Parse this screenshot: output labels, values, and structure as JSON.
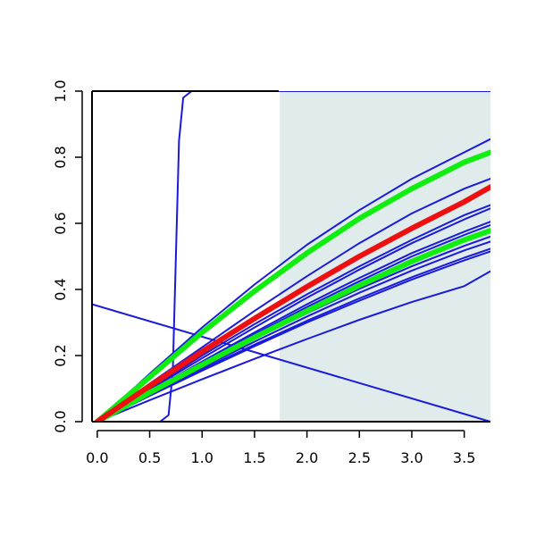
{
  "chart_data": {
    "type": "line",
    "title": "",
    "xlabel": "",
    "ylabel": "",
    "xlim": [
      -0.05,
      3.75
    ],
    "ylim": [
      0,
      1
    ],
    "grid": false,
    "x_ticks": [
      "0.0",
      "0.5",
      "1.0",
      "1.5",
      "2.0",
      "2.5",
      "3.0",
      "3.5"
    ],
    "y_ticks": [
      "0.0",
      "0.2",
      "0.4",
      "0.6",
      "0.8",
      "1.0"
    ],
    "shaded_region": {
      "x_start": 1.74,
      "x_end": 3.75,
      "color": "#e0ecec"
    },
    "series": [
      {
        "color": "#1a1adb",
        "width": 2,
        "points": [
          [
            -0.05,
            0.355
          ],
          [
            3.75,
            0.0
          ]
        ]
      },
      {
        "color": "#1a1adb",
        "width": 2,
        "points": [
          [
            0.0,
            0.0
          ],
          [
            0.6,
            0.0
          ],
          [
            0.68,
            0.02
          ],
          [
            0.72,
            0.15
          ],
          [
            0.75,
            0.5
          ],
          [
            0.78,
            0.85
          ],
          [
            0.82,
            0.98
          ],
          [
            0.9,
            1.0
          ],
          [
            3.75,
            1.0
          ]
        ]
      },
      {
        "color": "#1a1adb",
        "width": 2,
        "points": [
          [
            0.0,
            0.0
          ],
          [
            0.5,
            0.145
          ],
          [
            1.0,
            0.285
          ],
          [
            1.5,
            0.415
          ],
          [
            2.0,
            0.535
          ],
          [
            2.5,
            0.64
          ],
          [
            3.0,
            0.735
          ],
          [
            3.5,
            0.815
          ],
          [
            3.75,
            0.855
          ]
        ]
      },
      {
        "color": "#1a1adb",
        "width": 2,
        "points": [
          [
            0.0,
            0.0
          ],
          [
            0.5,
            0.115
          ],
          [
            1.0,
            0.225
          ],
          [
            1.5,
            0.335
          ],
          [
            2.0,
            0.44
          ],
          [
            2.5,
            0.54
          ],
          [
            3.0,
            0.63
          ],
          [
            3.5,
            0.705
          ],
          [
            3.75,
            0.735
          ]
        ]
      },
      {
        "color": "#1a1adb",
        "width": 2,
        "points": [
          [
            0.0,
            0.0
          ],
          [
            0.5,
            0.1
          ],
          [
            1.0,
            0.2
          ],
          [
            1.5,
            0.295
          ],
          [
            2.0,
            0.385
          ],
          [
            2.5,
            0.47
          ],
          [
            3.0,
            0.55
          ],
          [
            3.5,
            0.625
          ],
          [
            3.75,
            0.655
          ]
        ]
      },
      {
        "color": "#1a1adb",
        "width": 2,
        "points": [
          [
            0.0,
            0.0
          ],
          [
            0.5,
            0.097
          ],
          [
            1.0,
            0.192
          ],
          [
            1.5,
            0.285
          ],
          [
            2.0,
            0.375
          ],
          [
            2.5,
            0.46
          ],
          [
            3.0,
            0.54
          ],
          [
            3.5,
            0.612
          ],
          [
            3.75,
            0.645
          ]
        ]
      },
      {
        "color": "#1a1adb",
        "width": 2,
        "points": [
          [
            0.0,
            0.0
          ],
          [
            0.5,
            0.092
          ],
          [
            1.0,
            0.182
          ],
          [
            1.5,
            0.27
          ],
          [
            2.0,
            0.355
          ],
          [
            2.5,
            0.435
          ],
          [
            3.0,
            0.51
          ],
          [
            3.5,
            0.575
          ],
          [
            3.75,
            0.605
          ]
        ]
      },
      {
        "color": "#1a1adb",
        "width": 2,
        "points": [
          [
            0.0,
            0.0
          ],
          [
            0.5,
            0.09
          ],
          [
            1.0,
            0.178
          ],
          [
            1.5,
            0.264
          ],
          [
            2.0,
            0.347
          ],
          [
            2.5,
            0.425
          ],
          [
            3.0,
            0.5
          ],
          [
            3.5,
            0.565
          ],
          [
            3.75,
            0.595
          ]
        ]
      },
      {
        "color": "#1a1adb",
        "width": 2,
        "points": [
          [
            0.0,
            0.0
          ],
          [
            0.5,
            0.085
          ],
          [
            1.0,
            0.168
          ],
          [
            1.5,
            0.25
          ],
          [
            2.0,
            0.328
          ],
          [
            2.5,
            0.402
          ],
          [
            3.0,
            0.47
          ],
          [
            3.5,
            0.532
          ],
          [
            3.75,
            0.56
          ]
        ]
      },
      {
        "color": "#1a1adb",
        "width": 2,
        "points": [
          [
            0.0,
            0.0
          ],
          [
            0.5,
            0.083
          ],
          [
            1.0,
            0.163
          ],
          [
            1.5,
            0.242
          ],
          [
            2.0,
            0.318
          ],
          [
            2.5,
            0.39
          ],
          [
            3.0,
            0.457
          ],
          [
            3.5,
            0.518
          ],
          [
            3.75,
            0.545
          ]
        ]
      },
      {
        "color": "#1a1adb",
        "width": 2,
        "points": [
          [
            0.0,
            0.0
          ],
          [
            0.5,
            0.08
          ],
          [
            1.0,
            0.158
          ],
          [
            1.5,
            0.233
          ],
          [
            2.0,
            0.305
          ],
          [
            2.5,
            0.373
          ],
          [
            3.0,
            0.437
          ],
          [
            3.5,
            0.496
          ],
          [
            3.75,
            0.523
          ]
        ]
      },
      {
        "color": "#1a1adb",
        "width": 2,
        "points": [
          [
            0.0,
            0.0
          ],
          [
            0.5,
            0.078
          ],
          [
            1.0,
            0.154
          ],
          [
            1.5,
            0.228
          ],
          [
            2.0,
            0.3
          ],
          [
            2.5,
            0.366
          ],
          [
            3.0,
            0.43
          ],
          [
            3.5,
            0.488
          ],
          [
            3.75,
            0.515
          ]
        ]
      },
      {
        "color": "#1a1adb",
        "width": 2,
        "points": [
          [
            0.0,
            0.0
          ],
          [
            0.5,
            0.065
          ],
          [
            1.0,
            0.128
          ],
          [
            1.5,
            0.19
          ],
          [
            2.0,
            0.25
          ],
          [
            2.5,
            0.308
          ],
          [
            3.0,
            0.362
          ],
          [
            3.5,
            0.41
          ],
          [
            3.75,
            0.455
          ]
        ]
      },
      {
        "color": "#10ee10",
        "width": 6,
        "points": [
          [
            0.0,
            0.0
          ],
          [
            0.5,
            0.135
          ],
          [
            1.0,
            0.27
          ],
          [
            1.5,
            0.395
          ],
          [
            2.0,
            0.51
          ],
          [
            2.5,
            0.615
          ],
          [
            3.0,
            0.705
          ],
          [
            3.5,
            0.785
          ],
          [
            3.75,
            0.815
          ]
        ]
      },
      {
        "color": "#10ee10",
        "width": 6,
        "points": [
          [
            0.0,
            0.0
          ],
          [
            0.5,
            0.088
          ],
          [
            1.0,
            0.172
          ],
          [
            1.5,
            0.255
          ],
          [
            2.0,
            0.335
          ],
          [
            2.5,
            0.412
          ],
          [
            3.0,
            0.485
          ],
          [
            3.5,
            0.55
          ],
          [
            3.75,
            0.578
          ]
        ]
      },
      {
        "color": "#ee1010",
        "width": 6,
        "points": [
          [
            0.0,
            0.0
          ],
          [
            0.5,
            0.108
          ],
          [
            1.0,
            0.212
          ],
          [
            1.5,
            0.312
          ],
          [
            2.0,
            0.408
          ],
          [
            2.5,
            0.5
          ],
          [
            3.0,
            0.585
          ],
          [
            3.5,
            0.665
          ],
          [
            3.75,
            0.71
          ]
        ]
      }
    ]
  }
}
